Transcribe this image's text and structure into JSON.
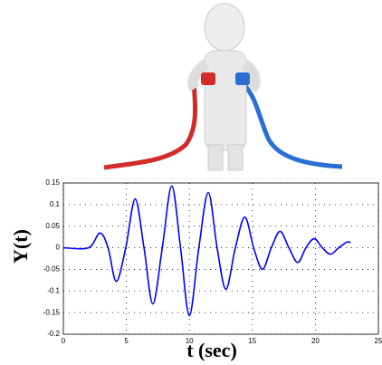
{
  "chart_data": {
    "type": "line",
    "y_label": "Y(t)",
    "x_label": "t  (sec)",
    "x": [
      0,
      2,
      2.9,
      3.55,
      4.2,
      4.95,
      5.7,
      6.4,
      7.1,
      7.85,
      8.6,
      9.3,
      10.0,
      10.75,
      11.5,
      12.2,
      12.9,
      13.65,
      14.4,
      15.1,
      15.8,
      16.5,
      17.2,
      17.9,
      18.6,
      19.25,
      19.9,
      20.55,
      21.2,
      21.85,
      22.5,
      22.8
    ],
    "values": [
      0,
      0,
      0.034,
      0,
      -0.078,
      0,
      0.113,
      0,
      -0.13,
      0,
      0.143,
      0,
      -0.157,
      0,
      0.128,
      0,
      -0.096,
      0,
      0.071,
      0,
      -0.05,
      0,
      0.038,
      0,
      -0.034,
      0,
      0.021,
      0,
      -0.015,
      0,
      0.013,
      0.012
    ],
    "color": "#0000ff",
    "xlim": [
      0,
      25
    ],
    "xticks": [
      0,
      5,
      10,
      15,
      20,
      25
    ],
    "ylim": [
      -0.2,
      0.15
    ],
    "yticks": [
      -0.2,
      -0.15,
      -0.1,
      -0.05,
      0,
      0.05,
      0.1,
      0.15
    ],
    "grid": true
  }
}
